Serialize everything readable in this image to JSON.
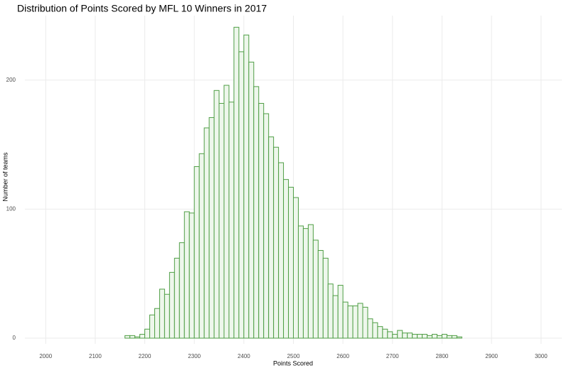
{
  "chart_data": {
    "type": "histogram",
    "title": "Distribution of Points Scored by MFL 10 Winners in 2017",
    "x_label": "Points Scored",
    "y_label": "Number of teams",
    "color": "#4f9e45",
    "fill": "#eef7ec",
    "grid": true,
    "bins": [
      2000,
      2010,
      2020,
      2030,
      2040,
      2050,
      2060,
      2070,
      2080,
      2090,
      2100,
      2110,
      2120,
      2130,
      2140,
      2150,
      2160,
      2170,
      2180,
      2190,
      2200,
      2210,
      2220,
      2230,
      2240,
      2250,
      2260,
      2270,
      2280,
      2290,
      2300,
      2310,
      2320,
      2330,
      2340,
      2350,
      2360,
      2370,
      2380,
      2390,
      2400,
      2410,
      2420,
      2430,
      2440,
      2450,
      2460,
      2470,
      2480,
      2490,
      2500,
      2510,
      2520,
      2530,
      2540,
      2550,
      2560,
      2570,
      2580,
      2590,
      2600,
      2610,
      2620,
      2630,
      2640,
      2650,
      2660,
      2670,
      2680,
      2690,
      2700,
      2710,
      2720,
      2730,
      2740,
      2750,
      2760,
      2770,
      2780,
      2790,
      2800,
      2810,
      2820,
      2830,
      2840,
      2850,
      2860,
      2870,
      2880,
      2890,
      2900,
      2910,
      2920,
      2930,
      2940,
      2950,
      2960,
      2970,
      2980,
      2990,
      3000
    ],
    "values": [
      0,
      0,
      0,
      0,
      0,
      0,
      0,
      0,
      0,
      0,
      0,
      0,
      0,
      0,
      0,
      0,
      2,
      2,
      1,
      3,
      7,
      18,
      23,
      38,
      34,
      51,
      62,
      74,
      98,
      97,
      133,
      143,
      163,
      171,
      192,
      182,
      196,
      183,
      241,
      222,
      235,
      214,
      195,
      182,
      174,
      156,
      148,
      136,
      123,
      117,
      109,
      87,
      85,
      88,
      76,
      68,
      62,
      42,
      33,
      41,
      28,
      25,
      25,
      27,
      24,
      15,
      12,
      9,
      7,
      5,
      3,
      6,
      4,
      4,
      3,
      3,
      3,
      2,
      3,
      2,
      3,
      2,
      2,
      1,
      0,
      0,
      0,
      0,
      0,
      0,
      0,
      0,
      0,
      0,
      0,
      0,
      0,
      0,
      0,
      0
    ],
    "xlim": [
      1958,
      3042
    ],
    "ylim": [
      0,
      250
    ],
    "xticks": [
      2000,
      2100,
      2200,
      2300,
      2400,
      2500,
      2600,
      2700,
      2800,
      2900,
      3000
    ],
    "yticks": [
      0,
      100,
      200
    ]
  }
}
